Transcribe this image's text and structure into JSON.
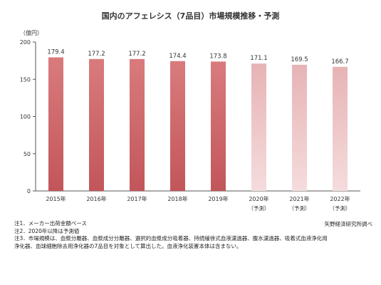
{
  "chart_data": {
    "type": "bar",
    "title": "国内のアフェレシス（7品目）市場規模推移・予測",
    "ylabel": "（億円）",
    "xlabel": "",
    "ylim": [
      0,
      200
    ],
    "yticks": [
      0,
      50,
      100,
      150,
      200
    ],
    "categories": [
      "2015年",
      "2016年",
      "2017年",
      "2018年",
      "2019年",
      "2020年",
      "2021年",
      "2022年"
    ],
    "forecast_labels": [
      "",
      "",
      "",
      "",
      "",
      "（予測）",
      "（予測）",
      "（予測）"
    ],
    "values": [
      179.4,
      177.2,
      177.2,
      174.4,
      173.8,
      171.1,
      169.5,
      166.7
    ],
    "value_labels": [
      "179.4",
      "177.2",
      "177.2",
      "174.4",
      "173.8",
      "171.1",
      "169.5",
      "166.7"
    ],
    "actual_color_top": "#d97b7d",
    "actual_color_bottom": "#c2565a",
    "forecast_color_top": "#e7b3b5",
    "forecast_color_bottom": "#f5dcdd",
    "grid": false
  },
  "notes": [
    "注1．メーカー出荷金額ベース",
    "注2．2020年以降は予測値",
    "注3．市場規模は、血漿分離器、血漿成分分離器、選択的血漿成分吸着器、持続緩徐式血液濾過器、腹水濾過器、吸着式血液浄化用",
    "浄化器、血球細胞除去用浄化器の7品目を対象として算出した。血液浄化装置本体は含まない。"
  ],
  "source": "矢野経済研究所調べ"
}
